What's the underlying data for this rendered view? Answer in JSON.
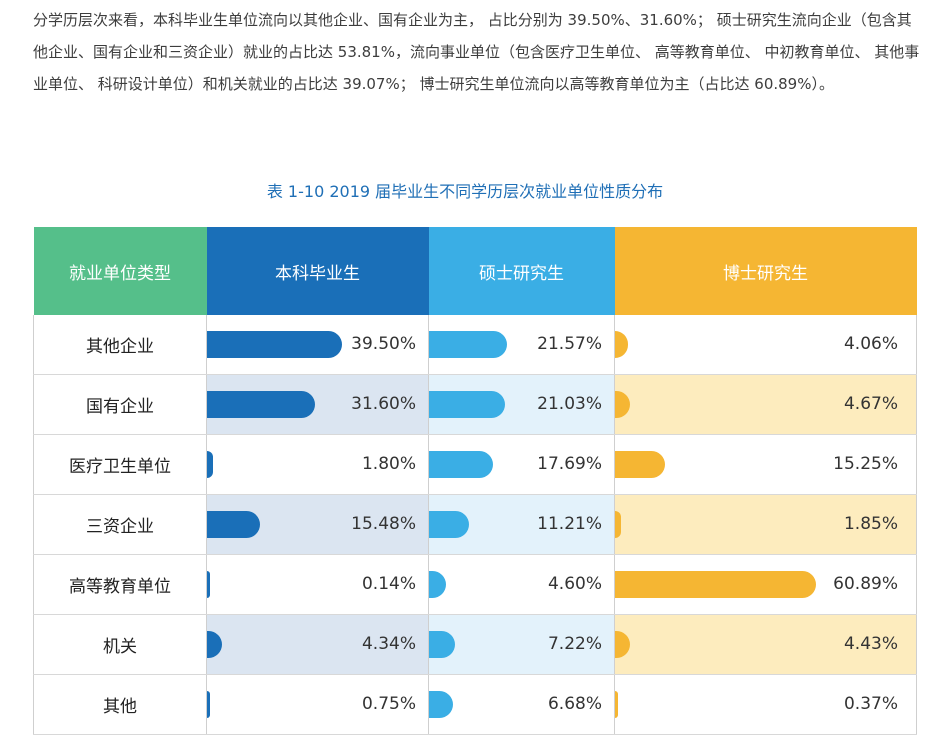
{
  "paragraph": "分学历层次来看，本科毕业生单位流向以其他企业、国有企业为主， 占比分别为 39.50%、31.60%； 硕士研究生流向企业（包含其他企业、国有企业和三资企业）就业的占比达 53.81%，流向事业单位（包含医疗卫生单位、 高等教育单位、 中初教育单位、 其他事业单位、 科研设计单位）和机关就业的占比达 39.07%； 博士研究生单位流向以高等教育单位为主（占比达 60.89%）。",
  "caption": "表 1-10  2019 届毕业生不同学历层次就业单位性质分布",
  "colors": {
    "type_header": "#55bf8a",
    "bachelor": "#1a6fb8",
    "master": "#3aaee5",
    "doctor": "#f5b633",
    "caption": "#1f6fb6"
  },
  "headers": [
    "就业单位类型",
    "本科毕业生",
    "硕士研究生",
    "博士研究生"
  ],
  "rows": [
    {
      "type": "其他企业",
      "bachelor": "39.50%",
      "master": "21.57%",
      "doctor": "4.06%"
    },
    {
      "type": "国有企业",
      "bachelor": "31.60%",
      "master": "21.03%",
      "doctor": "4.67%"
    },
    {
      "type": "医疗卫生单位",
      "bachelor": "1.80%",
      "master": "17.69%",
      "doctor": "15.25%"
    },
    {
      "type": "三资企业",
      "bachelor": "15.48%",
      "master": "11.21%",
      "doctor": "1.85%"
    },
    {
      "type": "高等教育单位",
      "bachelor": "0.14%",
      "master": "4.60%",
      "doctor": "60.89%"
    },
    {
      "type": "机关",
      "bachelor": "4.34%",
      "master": "7.22%",
      "doctor": "4.43%"
    },
    {
      "type": "其他",
      "bachelor": "0.75%",
      "master": "6.68%",
      "doctor": "0.37%"
    }
  ]
}
